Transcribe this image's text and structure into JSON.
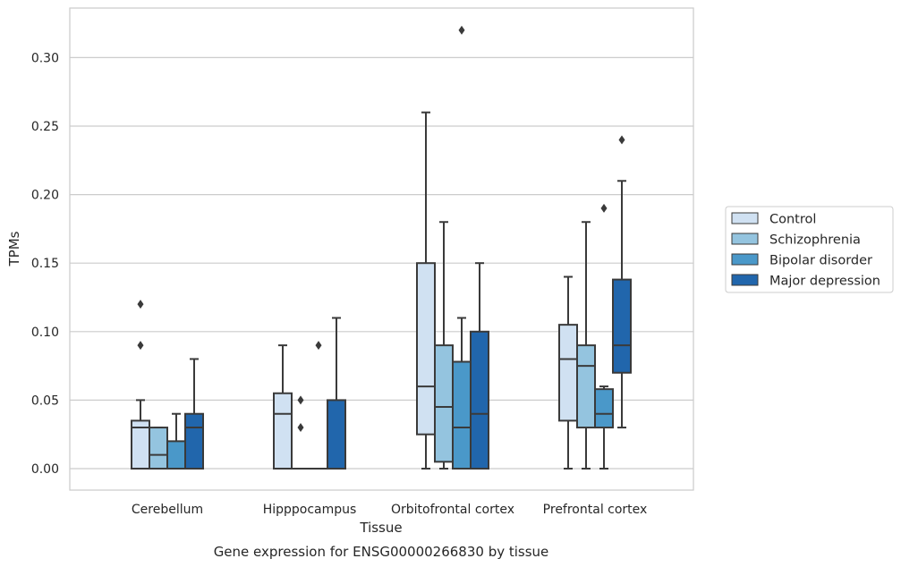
{
  "chart_data": {
    "type": "box",
    "title": "",
    "caption": "Gene expression for ENSG00000266830 by tissue",
    "xlabel": "Tissue",
    "ylabel": "TPMs",
    "ylim": [
      -0.016,
      0.337
    ],
    "yticks": [
      "0.00",
      "0.05",
      "0.10",
      "0.15",
      "0.20",
      "0.25",
      "0.30"
    ],
    "grid": "horizontal",
    "legend_position": "right",
    "categories": [
      "Cerebellum",
      "Hipppocampus",
      "Orbitofrontal cortex",
      "Prefrontal cortex"
    ],
    "series": [
      {
        "name": "Control",
        "color": "#d0e1f2",
        "boxes": [
          {
            "whislo": 0.0,
            "q1": 0.0,
            "med": 0.03,
            "q3": 0.035,
            "whishi": 0.05,
            "fliers": [
              0.09,
              0.12
            ]
          },
          {
            "whislo": 0.0,
            "q1": 0.0,
            "med": 0.04,
            "q3": 0.055,
            "whishi": 0.09,
            "fliers": []
          },
          {
            "whislo": 0.0,
            "q1": 0.025,
            "med": 0.06,
            "q3": 0.15,
            "whishi": 0.26,
            "fliers": []
          },
          {
            "whislo": 0.0,
            "q1": 0.035,
            "med": 0.08,
            "q3": 0.105,
            "whishi": 0.14,
            "fliers": []
          }
        ]
      },
      {
        "name": "Schizophrenia",
        "color": "#94c4df",
        "boxes": [
          {
            "whislo": 0.0,
            "q1": 0.0,
            "med": 0.01,
            "q3": 0.03,
            "whishi": 0.03,
            "fliers": []
          },
          {
            "whislo": 0.0,
            "q1": 0.0,
            "med": 0.0,
            "q3": 0.0,
            "whishi": 0.0,
            "fliers": [
              0.03,
              0.05
            ]
          },
          {
            "whislo": 0.0,
            "q1": 0.005,
            "med": 0.045,
            "q3": 0.09,
            "whishi": 0.18,
            "fliers": []
          },
          {
            "whislo": 0.0,
            "q1": 0.03,
            "med": 0.075,
            "q3": 0.09,
            "whishi": 0.18,
            "fliers": []
          }
        ]
      },
      {
        "name": "Bipolar disorder",
        "color": "#4a98c9",
        "boxes": [
          {
            "whislo": 0.0,
            "q1": 0.0,
            "med": 0.0,
            "q3": 0.02,
            "whishi": 0.04,
            "fliers": []
          },
          {
            "whislo": 0.0,
            "q1": 0.0,
            "med": 0.0,
            "q3": 0.0,
            "whishi": 0.0,
            "fliers": [
              0.09
            ]
          },
          {
            "whislo": 0.0,
            "q1": 0.0,
            "med": 0.03,
            "q3": 0.078,
            "whishi": 0.11,
            "fliers": [
              0.32
            ]
          },
          {
            "whislo": 0.0,
            "q1": 0.03,
            "med": 0.04,
            "q3": 0.058,
            "whishi": 0.06,
            "fliers": [
              0.19
            ]
          }
        ]
      },
      {
        "name": "Major depression",
        "color": "#2166ac",
        "boxes": [
          {
            "whislo": 0.0,
            "q1": 0.0,
            "med": 0.03,
            "q3": 0.04,
            "whishi": 0.08,
            "fliers": []
          },
          {
            "whislo": 0.0,
            "q1": 0.0,
            "med": 0.0,
            "q3": 0.05,
            "whishi": 0.11,
            "fliers": []
          },
          {
            "whislo": 0.0,
            "q1": 0.0,
            "med": 0.04,
            "q3": 0.1,
            "whishi": 0.15,
            "fliers": []
          },
          {
            "whislo": 0.03,
            "q1": 0.07,
            "med": 0.09,
            "q3": 0.138,
            "whishi": 0.21,
            "fliers": [
              0.24
            ]
          }
        ]
      }
    ]
  }
}
